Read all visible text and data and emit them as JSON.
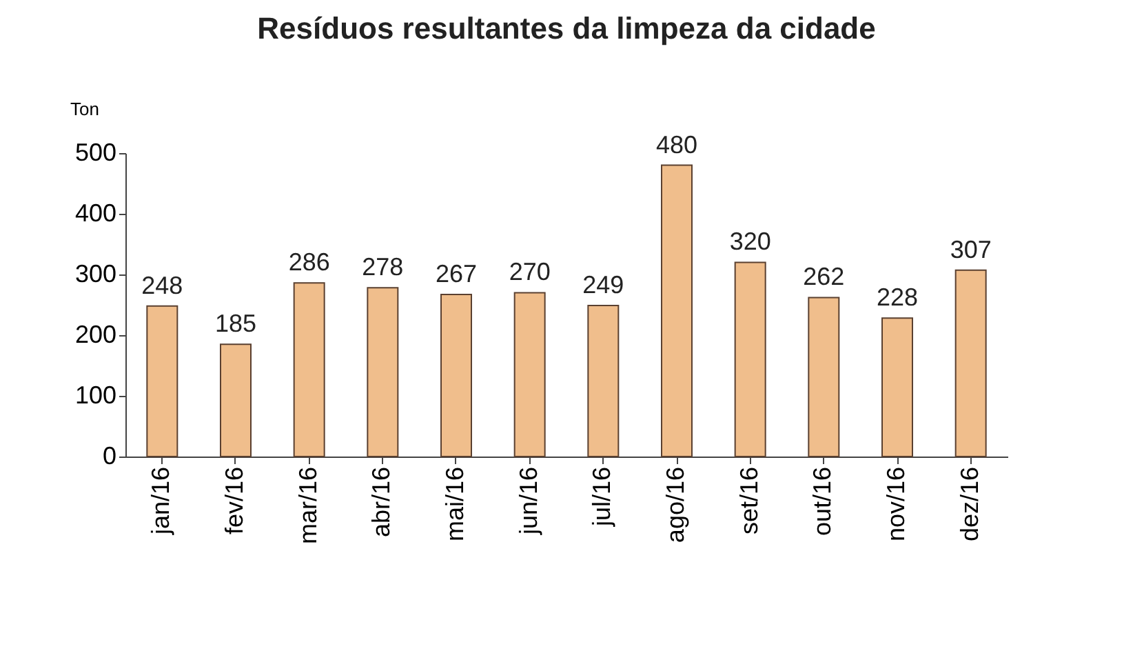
{
  "chart_data": {
    "type": "bar",
    "title": "Resíduos resultantes da limpeza da cidade",
    "ylabel": "Ton",
    "categories": [
      "jan/16",
      "fev/16",
      "mar/16",
      "abr/16",
      "mai/16",
      "jun/16",
      "jul/16",
      "ago/16",
      "set/16",
      "out/16",
      "nov/16",
      "dez/16"
    ],
    "values": [
      248,
      185,
      286,
      278,
      267,
      270,
      249,
      480,
      320,
      262,
      228,
      307
    ],
    "color": "#f0be8c",
    "ylim": [
      0,
      500
    ],
    "yticks": [
      0,
      100,
      200,
      300,
      400,
      500
    ],
    "data_labels": true,
    "grid": false
  }
}
